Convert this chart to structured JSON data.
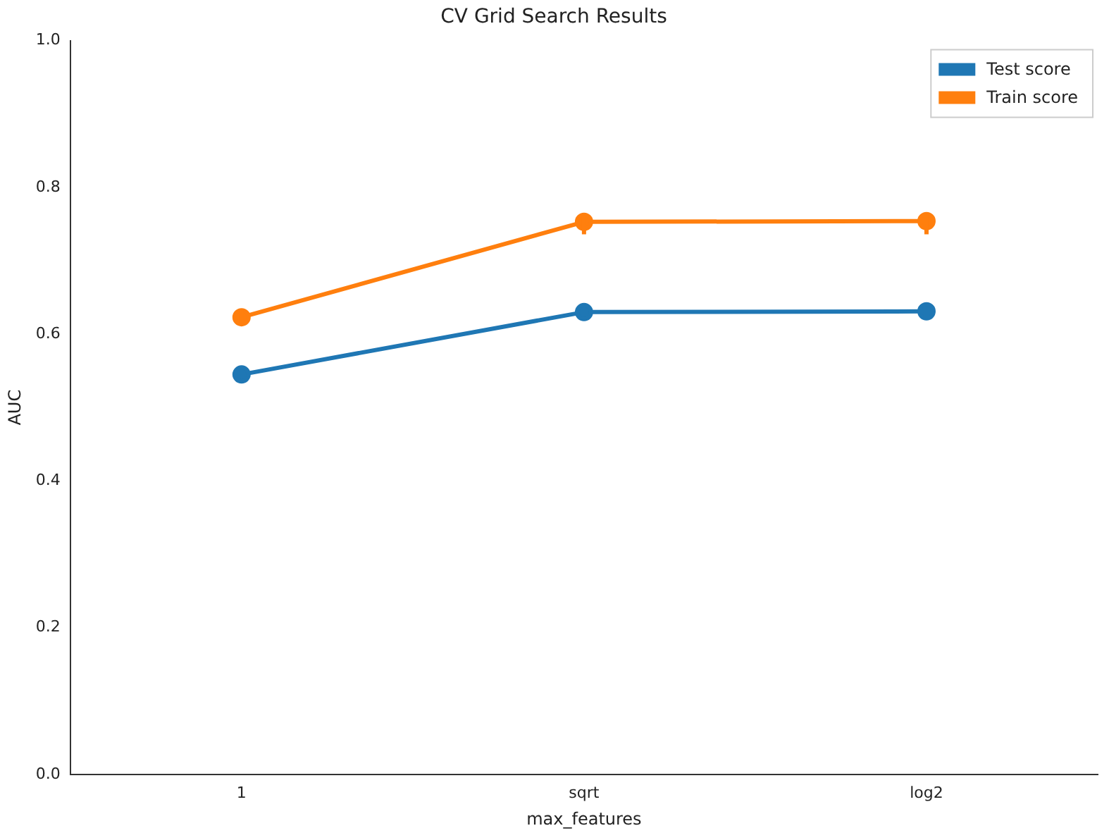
{
  "chart_data": {
    "type": "line",
    "title": "CV Grid Search Results",
    "xlabel": "max_features",
    "ylabel": "AUC",
    "categories": [
      "1",
      "sqrt",
      "log2"
    ],
    "series": [
      {
        "name": "Test score",
        "color": "#1f77b4",
        "values": [
          0.545,
          0.63,
          0.631
        ]
      },
      {
        "name": "Train score",
        "color": "#ff7f0e",
        "values": [
          0.623,
          0.753,
          0.754
        ],
        "errors": [
          [
            0.614,
            0.632
          ],
          [
            0.736,
            0.762
          ],
          [
            0.736,
            0.762
          ]
        ]
      }
    ],
    "ylim": [
      0,
      1
    ],
    "yticks": [
      {
        "value": 0,
        "label": "0.0"
      },
      {
        "value": 0.2,
        "label": "0.2"
      },
      {
        "value": 0.4,
        "label": "0.4"
      },
      {
        "value": 0.6,
        "label": "0.6"
      },
      {
        "value": 0.8,
        "label": "0.8"
      },
      {
        "value": 1,
        "label": "1.0"
      }
    ],
    "legend": "top right",
    "marker": "circle",
    "grid": false
  }
}
